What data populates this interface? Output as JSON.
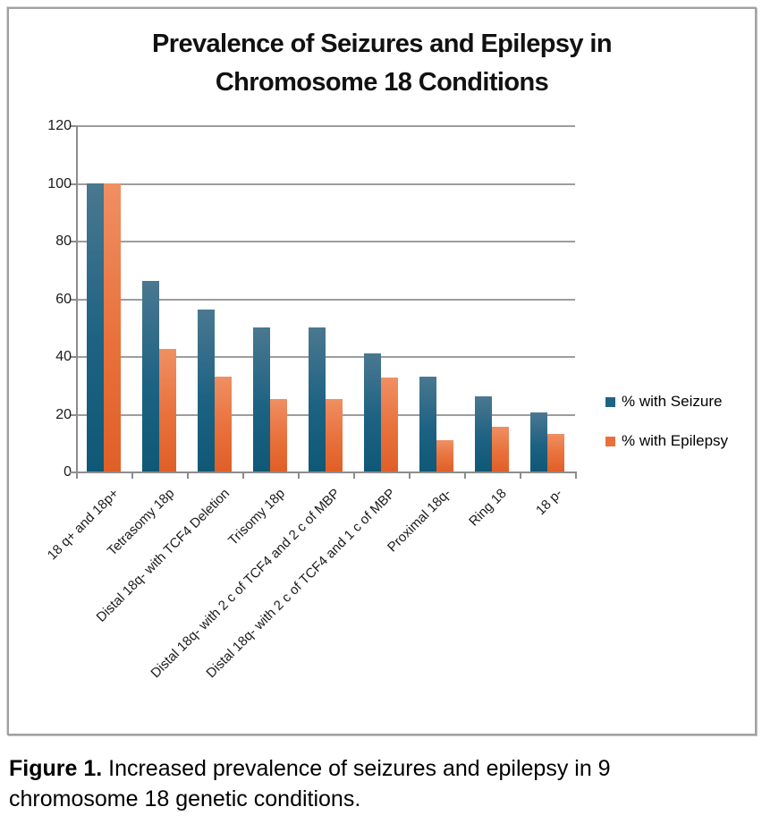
{
  "figure": {
    "title_line1": "Prevalence of Seizures and Epilepsy in",
    "title_line2": "Chromosome 18 Conditions"
  },
  "chart_data": {
    "type": "bar",
    "title": "Prevalence of Seizures and Epilepsy in Chromosome 18 Conditions",
    "categories": [
      "18 q+ and 18p+",
      "Tetrasomy 18p",
      "Distal 18q- with TCF4 Deletion",
      "Trisomy 18p",
      "Distal 18q- with 2 c of TCF4 and 2 c of MBP",
      "Distal 18q- with 2 c of TCF4 and 1 c of MBP",
      "Proximal 18q-",
      "Ring 18",
      "18 p-"
    ],
    "series": [
      {
        "name": "% with Seizure",
        "color": "#1d6283",
        "values": [
          100,
          66,
          56,
          50,
          50,
          41,
          33,
          26,
          20.5
        ]
      },
      {
        "name": "% with Epilepsy",
        "color": "#e8713b",
        "values": [
          100,
          42.5,
          33,
          25,
          25,
          32.5,
          11,
          15.5,
          13
        ]
      }
    ],
    "ylim": [
      0,
      120
    ],
    "ytick_step": 20,
    "ytick_labels": [
      "0",
      "20",
      "40",
      "60",
      "80",
      "100",
      "120"
    ],
    "xlabel": "",
    "ylabel": "",
    "grid": "horizontal",
    "legend_position": "right"
  },
  "legend": {
    "items": [
      {
        "label": "% with Seizure",
        "color": "#1f6384"
      },
      {
        "label": "% with Epilepsy",
        "color": "#e9703c"
      }
    ]
  },
  "caption": {
    "bold": "Figure 1.",
    "text": " Increased prevalence of seizures and epilepsy in 9 chromosome 18 genetic conditions."
  }
}
